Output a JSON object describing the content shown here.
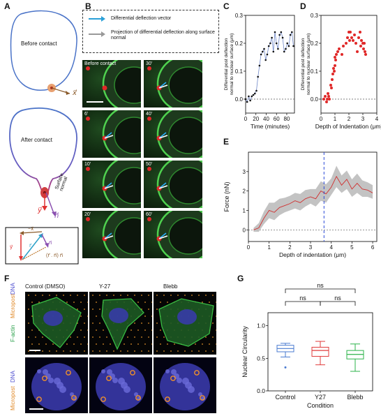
{
  "panel_labels": {
    "a": "A",
    "b": "B",
    "c": "C",
    "d": "D",
    "e": "E",
    "f": "F",
    "g": "G"
  },
  "panel_a": {
    "before_label": "Before contact",
    "after_label": "After contact",
    "x_vec": "x⃗",
    "y_vec": "y⃗",
    "n_vec": "n⃗",
    "surface_normal": "Surface normal",
    "box_labels": {
      "minus_x": "−x⃗",
      "y": "y⃗",
      "r": "r⃗",
      "n": "n⃗",
      "proj": "(r⃗ . n⃗) n⃗"
    }
  },
  "panel_b": {
    "legend_1": "Differential deflection vector",
    "legend_2": "Projection of differential deflection along surface normal",
    "frames": [
      "Before contact",
      "30'",
      "6'",
      "40'",
      "10'",
      "50'",
      "20'",
      "60'"
    ]
  },
  "chart_data": [
    {
      "id": "C",
      "type": "line",
      "xlabel": "Time (minutes)",
      "ylabel": "Differential post deflection normal to nuclear surface (μm)",
      "xlim": [
        0,
        95
      ],
      "ylim": [
        -0.05,
        0.3
      ],
      "xticks": [
        0,
        20,
        40,
        60,
        80
      ],
      "yticks": [
        0.0,
        0.1,
        0.2,
        0.3
      ],
      "x": [
        0,
        3,
        6,
        9,
        12,
        15,
        18,
        21,
        24,
        27,
        30,
        33,
        36,
        39,
        42,
        45,
        48,
        51,
        54,
        57,
        60,
        63,
        66,
        69,
        72,
        75,
        78,
        81,
        84,
        87,
        90,
        93
      ],
      "y": [
        0.0,
        -0.01,
        0.01,
        -0.005,
        0.01,
        0.015,
        0.02,
        0.03,
        0.08,
        0.12,
        0.16,
        0.17,
        0.18,
        0.14,
        0.16,
        0.19,
        0.2,
        0.22,
        0.17,
        0.24,
        0.2,
        0.18,
        0.23,
        0.24,
        0.22,
        0.17,
        0.18,
        0.2,
        0.19,
        0.23,
        0.24,
        0.19
      ]
    },
    {
      "id": "D",
      "type": "scatter",
      "xlabel": "Depth of Indentation (μm)",
      "ylabel": "Differential post deflection normal to nuclear surface (μm)",
      "xlim": [
        0,
        4
      ],
      "ylim": [
        -0.05,
        0.3
      ],
      "xticks": [
        0,
        1,
        2,
        3,
        4
      ],
      "yticks": [
        0.0,
        0.1,
        0.2,
        0.3
      ],
      "x": [
        0.2,
        0.3,
        0.4,
        0.45,
        0.5,
        0.55,
        0.6,
        0.7,
        0.75,
        0.8,
        0.85,
        0.9,
        0.95,
        1.0,
        1.0,
        1.05,
        1.1,
        1.2,
        1.3,
        1.5,
        1.6,
        1.8,
        1.9,
        2.0,
        2.05,
        2.1,
        2.2,
        2.3,
        2.4,
        2.5,
        2.6,
        2.7,
        2.8,
        2.85,
        2.9,
        3.0,
        3.05,
        3.1,
        3.15,
        3.2
      ],
      "y": [
        0.0,
        0.01,
        -0.01,
        0.0,
        0.02,
        0.01,
        0.0,
        0.05,
        0.04,
        0.07,
        0.09,
        0.11,
        0.1,
        0.12,
        0.15,
        0.14,
        0.16,
        0.17,
        0.18,
        0.16,
        0.19,
        0.2,
        0.22,
        0.24,
        0.21,
        0.24,
        0.22,
        0.21,
        0.23,
        0.2,
        0.17,
        0.22,
        0.24,
        0.19,
        0.21,
        0.2,
        0.18,
        0.2,
        0.17,
        0.16
      ]
    },
    {
      "id": "E",
      "type": "line",
      "xlabel": "Depth of indentation (μm)",
      "ylabel": "Force (nN)",
      "xlim": [
        0,
        6.2
      ],
      "ylim": [
        -0.6,
        4
      ],
      "xticks": [
        0,
        1,
        2,
        3,
        4,
        5,
        6
      ],
      "yticks": [
        0,
        1,
        2,
        3
      ],
      "vline": 3.65,
      "x": [
        0.25,
        0.5,
        0.75,
        1.0,
        1.25,
        1.5,
        1.75,
        2.0,
        2.25,
        2.5,
        2.75,
        3.0,
        3.25,
        3.5,
        3.75,
        4.0,
        4.25,
        4.5,
        4.75,
        5.0,
        5.25,
        5.5,
        5.75,
        6.0
      ],
      "mean": [
        0.0,
        0.1,
        0.6,
        1.0,
        0.9,
        1.15,
        1.25,
        1.35,
        1.5,
        1.4,
        1.6,
        1.7,
        1.6,
        2.0,
        1.85,
        2.2,
        2.75,
        2.3,
        2.6,
        2.1,
        2.4,
        2.1,
        2.05,
        1.9
      ],
      "lower": [
        -0.1,
        -0.1,
        0.3,
        0.6,
        0.5,
        0.75,
        0.9,
        1.0,
        1.1,
        1.0,
        1.2,
        1.35,
        1.2,
        1.5,
        1.4,
        1.8,
        2.2,
        1.9,
        2.1,
        1.7,
        1.9,
        1.7,
        1.7,
        1.6
      ],
      "upper": [
        0.1,
        0.35,
        0.95,
        1.4,
        1.4,
        1.6,
        1.65,
        1.75,
        1.9,
        1.85,
        2.05,
        2.1,
        2.1,
        2.5,
        2.35,
        2.65,
        3.3,
        2.8,
        3.05,
        2.6,
        2.9,
        2.55,
        2.45,
        2.3
      ]
    },
    {
      "id": "G",
      "type": "box",
      "xlabel": "Condition",
      "ylabel": "Nuclear Circularity",
      "ylim": [
        0.0,
        1.2
      ],
      "yticks": [
        0.0,
        0.5,
        1.0
      ],
      "categories": [
        "Control",
        "Y27",
        "Blebb"
      ],
      "colors": [
        "#4a7bd0",
        "#e03b3b",
        "#2bb34a"
      ],
      "boxes": [
        {
          "min": 0.52,
          "q1": 0.6,
          "median": 0.65,
          "q3": 0.7,
          "max": 0.73,
          "outliers": [
            0.36
          ]
        },
        {
          "min": 0.4,
          "q1": 0.53,
          "median": 0.62,
          "q3": 0.67,
          "max": 0.76,
          "outliers": []
        },
        {
          "min": 0.3,
          "q1": 0.49,
          "median": 0.56,
          "q3": 0.62,
          "max": 0.72,
          "outliers": []
        }
      ],
      "significance": [
        {
          "from": 0,
          "to": 2,
          "label": "ns"
        },
        {
          "from": 0,
          "to": 1,
          "label": "ns"
        },
        {
          "from": 1,
          "to": 2,
          "label": "ns"
        }
      ]
    }
  ],
  "panel_f": {
    "columns": [
      "Control (DMSO)",
      "Y-27",
      "Blebb"
    ],
    "row1_labels": [
      "F-actin",
      "Micropost",
      "DNA"
    ],
    "row2_labels": [
      "Micropost",
      "DNA"
    ]
  }
}
